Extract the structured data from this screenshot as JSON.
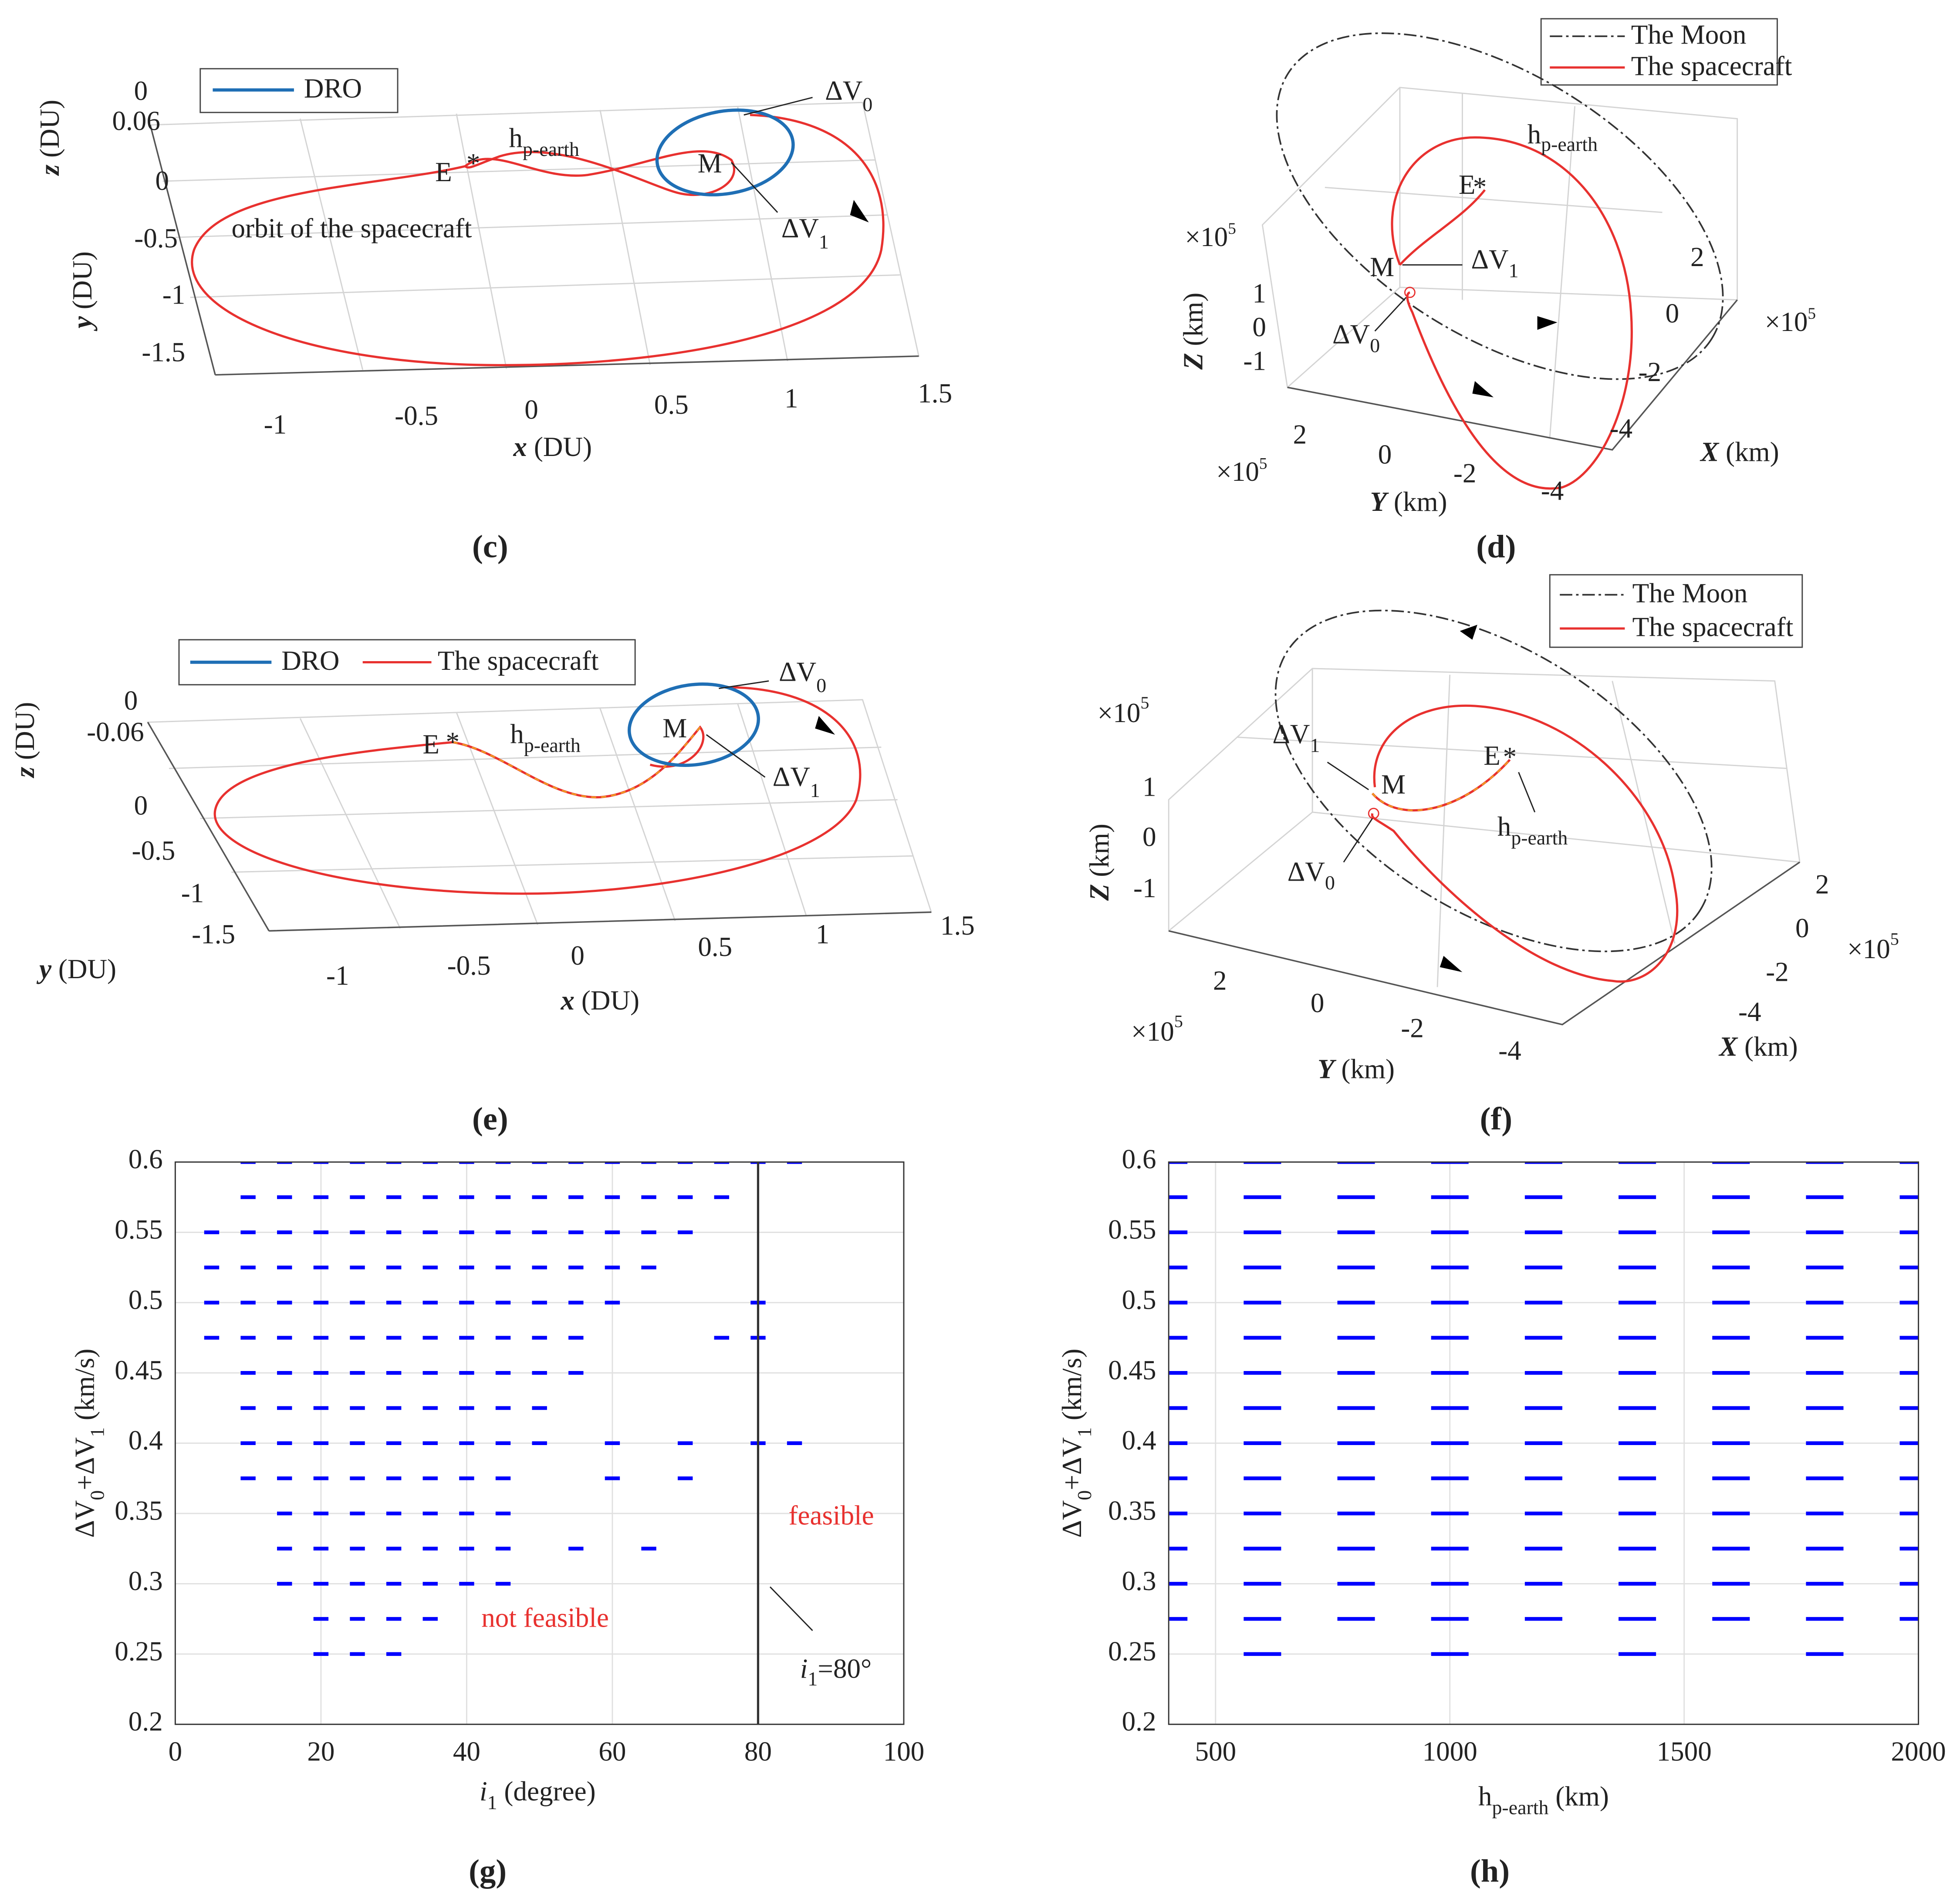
{
  "chart_data": [
    {
      "panel": "(c)",
      "type": "line3d",
      "legend": [
        "DRO"
      ],
      "xlabel": [
        "x",
        " (DU)"
      ],
      "ylabel": [
        "y",
        " (DU)"
      ],
      "zlabel": [
        "z",
        " (DU)"
      ],
      "xticks": [
        -1,
        -0.5,
        0,
        0.5,
        1,
        1.5
      ],
      "yticks": [
        -1.5,
        -1,
        -0.5,
        0
      ],
      "zticks": [
        0.06,
        0
      ],
      "annotations": [
        [
          "E"
        ],
        [
          "h",
          "p-earth"
        ],
        [
          "M"
        ],
        [
          "ΔV",
          "0"
        ],
        [
          "ΔV",
          "1"
        ],
        [
          "orbit of the spacecraft"
        ]
      ]
    },
    {
      "panel": "(d)",
      "type": "line3d",
      "legend": [
        "The Moon",
        "The spacecraft"
      ],
      "xlabel": [
        "X",
        " (km)"
      ],
      "ylabel": [
        "Y",
        " (km)"
      ],
      "zlabel": [
        "Z",
        " (km)"
      ],
      "xticks": [
        2,
        0,
        -2,
        -4
      ],
      "yticks": [
        2,
        0,
        -2,
        -4
      ],
      "zticks": [
        1,
        0,
        -1
      ],
      "axis_scale": [
        "×10",
        "5"
      ],
      "annotations": [
        [
          "h",
          "p-earth"
        ],
        [
          "E"
        ],
        [
          "M"
        ],
        [
          "ΔV",
          "1"
        ],
        [
          "ΔV",
          "0"
        ]
      ]
    },
    {
      "panel": "(e)",
      "type": "line3d",
      "legend": [
        "DRO",
        "The spacecraft"
      ],
      "xlabel": [
        "x",
        " (DU)"
      ],
      "ylabel": [
        "y",
        " (DU)"
      ],
      "zlabel": [
        "z",
        " (DU)"
      ],
      "xticks": [
        -1,
        -0.5,
        0,
        0.5,
        1,
        1.5
      ],
      "yticks": [
        0,
        -0.5,
        -1,
        -1.5
      ],
      "zticks": [
        0,
        -0.06
      ],
      "annotations": [
        [
          "E"
        ],
        [
          "h",
          "p-earth"
        ],
        [
          "M"
        ],
        [
          "ΔV",
          "0"
        ],
        [
          "ΔV",
          "1"
        ]
      ]
    },
    {
      "panel": "(f)",
      "type": "line3d",
      "legend": [
        "The Moon",
        "The spacecraft"
      ],
      "xlabel": [
        "X",
        " (km)"
      ],
      "ylabel": [
        "Y",
        " (km)"
      ],
      "zlabel": [
        "Z",
        " (km)"
      ],
      "xticks": [
        2,
        0,
        -2,
        -4
      ],
      "yticks": [
        2,
        0,
        -2,
        -4
      ],
      "zticks": [
        1,
        0,
        -1
      ],
      "axis_scale": [
        "×10",
        "5"
      ],
      "annotations": [
        [
          "ΔV",
          "1"
        ],
        [
          "M"
        ],
        [
          "E"
        ],
        [
          "h",
          "p-earth"
        ],
        [
          "ΔV",
          "0"
        ]
      ]
    },
    {
      "panel": "(g)",
      "type": "scatter",
      "xlabel": [
        "i",
        "1",
        " (degree)"
      ],
      "ylabel": [
        "ΔV",
        "0",
        "+ΔV",
        "1",
        " (km/s)"
      ],
      "xlim": [
        0,
        100
      ],
      "ylim": [
        0.2,
        0.6
      ],
      "xticks": [
        0,
        20,
        40,
        60,
        80,
        100
      ],
      "yticks": [
        0.2,
        0.25,
        0.3,
        0.35,
        0.4,
        0.45,
        0.5,
        0.55,
        0.6
      ],
      "grid": true,
      "color": "#0000ff",
      "vline": 80,
      "annotations": [
        [
          "feasible"
        ],
        [
          "not feasible"
        ],
        [
          "i",
          "1",
          "=80°"
        ]
      ],
      "x": [
        10,
        15,
        20,
        25,
        30,
        35,
        40,
        45,
        50,
        55,
        60,
        65,
        70,
        75,
        80,
        85,
        10,
        15,
        20,
        25,
        30,
        35,
        40,
        45,
        50,
        55,
        60,
        65,
        70,
        75,
        5,
        10,
        15,
        20,
        25,
        30,
        35,
        40,
        45,
        50,
        55,
        60,
        65,
        70,
        5,
        10,
        15,
        20,
        25,
        30,
        35,
        40,
        45,
        50,
        55,
        60,
        65,
        5,
        10,
        15,
        20,
        25,
        30,
        35,
        40,
        45,
        50,
        55,
        60,
        80,
        5,
        10,
        15,
        20,
        25,
        30,
        35,
        40,
        45,
        50,
        55,
        75,
        80,
        10,
        15,
        20,
        25,
        30,
        35,
        40,
        45,
        50,
        55,
        10,
        15,
        20,
        25,
        30,
        35,
        40,
        45,
        50,
        10,
        15,
        20,
        25,
        30,
        35,
        40,
        45,
        50,
        60,
        70,
        80,
        85,
        10,
        15,
        20,
        25,
        30,
        35,
        40,
        45,
        60,
        70,
        15,
        20,
        25,
        30,
        35,
        40,
        45,
        15,
        20,
        25,
        30,
        35,
        40,
        45,
        55,
        65,
        15,
        20,
        25,
        30,
        35,
        40,
        45,
        20,
        25,
        30,
        35,
        20,
        25,
        30
      ],
      "values": [
        0.6,
        0.6,
        0.6,
        0.6,
        0.6,
        0.6,
        0.6,
        0.6,
        0.6,
        0.6,
        0.6,
        0.6,
        0.6,
        0.6,
        0.6,
        0.6,
        0.575,
        0.575,
        0.575,
        0.575,
        0.575,
        0.575,
        0.575,
        0.575,
        0.575,
        0.575,
        0.575,
        0.575,
        0.575,
        0.575,
        0.55,
        0.55,
        0.55,
        0.55,
        0.55,
        0.55,
        0.55,
        0.55,
        0.55,
        0.55,
        0.55,
        0.55,
        0.55,
        0.55,
        0.525,
        0.525,
        0.525,
        0.525,
        0.525,
        0.525,
        0.525,
        0.525,
        0.525,
        0.525,
        0.525,
        0.525,
        0.525,
        0.5,
        0.5,
        0.5,
        0.5,
        0.5,
        0.5,
        0.5,
        0.5,
        0.5,
        0.5,
        0.5,
        0.5,
        0.5,
        0.475,
        0.475,
        0.475,
        0.475,
        0.475,
        0.475,
        0.475,
        0.475,
        0.475,
        0.475,
        0.475,
        0.475,
        0.475,
        0.45,
        0.45,
        0.45,
        0.45,
        0.45,
        0.45,
        0.45,
        0.45,
        0.45,
        0.45,
        0.425,
        0.425,
        0.425,
        0.425,
        0.425,
        0.425,
        0.425,
        0.425,
        0.425,
        0.4,
        0.4,
        0.4,
        0.4,
        0.4,
        0.4,
        0.4,
        0.4,
        0.4,
        0.4,
        0.4,
        0.4,
        0.4,
        0.375,
        0.375,
        0.375,
        0.375,
        0.375,
        0.375,
        0.375,
        0.375,
        0.375,
        0.375,
        0.35,
        0.35,
        0.35,
        0.35,
        0.35,
        0.35,
        0.35,
        0.325,
        0.325,
        0.325,
        0.325,
        0.325,
        0.325,
        0.325,
        0.325,
        0.325,
        0.3,
        0.3,
        0.3,
        0.3,
        0.3,
        0.3,
        0.3,
        0.275,
        0.275,
        0.275,
        0.275,
        0.25,
        0.25,
        0.25
      ]
    },
    {
      "panel": "(h)",
      "type": "scatter",
      "xlabel": [
        "h",
        "p-earth",
        " (km)"
      ],
      "ylabel": [
        "ΔV",
        "0",
        "+ΔV",
        "1",
        " (km/s)"
      ],
      "xlim": [
        400,
        2000
      ],
      "ylim": [
        0.2,
        0.6
      ],
      "xticks": [
        500,
        1000,
        1500,
        2000
      ],
      "yticks": [
        0.2,
        0.25,
        0.3,
        0.35,
        0.4,
        0.45,
        0.5,
        0.55,
        0.6
      ],
      "grid": true,
      "color": "#0000ff",
      "x": [
        400,
        600,
        800,
        1000,
        1200,
        1400,
        1600,
        1800,
        2000,
        400,
        600,
        800,
        1000,
        1200,
        1400,
        1600,
        1800,
        2000,
        400,
        600,
        800,
        1000,
        1200,
        1400,
        1600,
        1800,
        2000,
        400,
        600,
        800,
        1000,
        1200,
        1400,
        1600,
        1800,
        2000,
        400,
        600,
        800,
        1000,
        1200,
        1400,
        1600,
        1800,
        2000,
        400,
        600,
        800,
        1000,
        1200,
        1400,
        1600,
        1800,
        2000,
        400,
        600,
        800,
        1000,
        1200,
        1400,
        1600,
        1800,
        2000,
        400,
        600,
        800,
        1000,
        1200,
        1400,
        1600,
        1800,
        2000,
        400,
        600,
        800,
        1000,
        1200,
        1400,
        1600,
        1800,
        2000,
        400,
        600,
        800,
        1000,
        1200,
        1400,
        1600,
        1800,
        2000,
        400,
        600,
        800,
        1000,
        1200,
        1400,
        1600,
        1800,
        2000,
        400,
        600,
        800,
        1000,
        1200,
        1400,
        1600,
        1800,
        2000,
        400,
        600,
        800,
        1000,
        1200,
        1400,
        1600,
        1800,
        2000,
        400,
        600,
        800,
        1000,
        1200,
        1400,
        1600,
        1800,
        2000,
        600,
        1000,
        1400,
        1800
      ],
      "values": [
        0.6,
        0.6,
        0.6,
        0.6,
        0.6,
        0.6,
        0.6,
        0.6,
        0.6,
        0.575,
        0.575,
        0.575,
        0.575,
        0.575,
        0.575,
        0.575,
        0.575,
        0.575,
        0.55,
        0.55,
        0.55,
        0.55,
        0.55,
        0.55,
        0.55,
        0.55,
        0.55,
        0.525,
        0.525,
        0.525,
        0.525,
        0.525,
        0.525,
        0.525,
        0.525,
        0.525,
        0.5,
        0.5,
        0.5,
        0.5,
        0.5,
        0.5,
        0.5,
        0.5,
        0.5,
        0.475,
        0.475,
        0.475,
        0.475,
        0.475,
        0.475,
        0.475,
        0.475,
        0.475,
        0.45,
        0.45,
        0.45,
        0.45,
        0.45,
        0.45,
        0.45,
        0.45,
        0.45,
        0.425,
        0.425,
        0.425,
        0.425,
        0.425,
        0.425,
        0.425,
        0.425,
        0.425,
        0.4,
        0.4,
        0.4,
        0.4,
        0.4,
        0.4,
        0.4,
        0.4,
        0.4,
        0.375,
        0.375,
        0.375,
        0.375,
        0.375,
        0.375,
        0.375,
        0.375,
        0.375,
        0.35,
        0.35,
        0.35,
        0.35,
        0.35,
        0.35,
        0.35,
        0.35,
        0.35,
        0.325,
        0.325,
        0.325,
        0.325,
        0.325,
        0.325,
        0.325,
        0.325,
        0.325,
        0.3,
        0.3,
        0.3,
        0.3,
        0.3,
        0.3,
        0.3,
        0.3,
        0.3,
        0.275,
        0.275,
        0.275,
        0.275,
        0.275,
        0.275,
        0.275,
        0.275,
        0.275,
        0.25,
        0.25,
        0.25,
        0.25
      ]
    }
  ]
}
